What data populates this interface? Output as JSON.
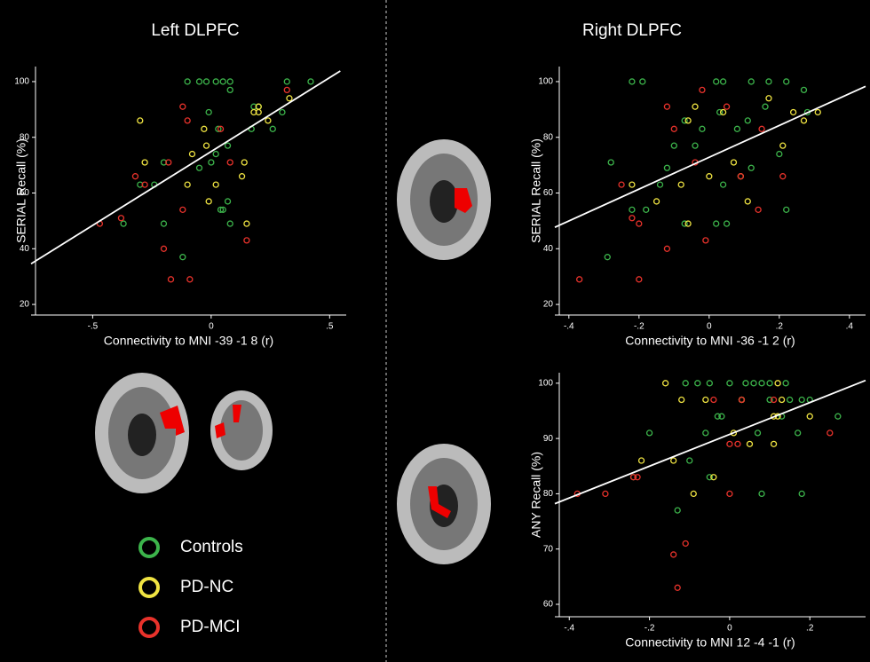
{
  "chart_data": [
    {
      "type": "scatter",
      "title": "Left DLPFC",
      "x_label": "Connectivity to MNI -39 -1 8 (r)",
      "y_label": "SERIAL Recall (%)",
      "xlim": [
        -0.76,
        0.57
      ],
      "ylim": [
        16.2,
        105.4
      ],
      "xticks": [
        {
          "value": -0.5,
          "label": "-.5"
        },
        0,
        {
          "value": 0.5,
          "label": ".5"
        }
      ],
      "yticks": [
        20,
        40,
        60,
        80,
        100
      ],
      "fit": {
        "color": "#ffffff",
        "x": [
          -0.76,
          0.545
        ],
        "values": [
          34.6,
          103.8
        ]
      },
      "series": [
        {
          "name": "Controls",
          "color": "#3cb44b",
          "x": [
            -0.1,
            -0.05,
            -0.02,
            0.02,
            0.05,
            0.08,
            0.08,
            0.32,
            0.42,
            -0.01,
            0.03,
            0.07,
            0.02,
            0.0,
            -0.05,
            -0.2,
            -0.24,
            -0.3,
            0.26,
            0.3,
            0.18,
            0.2,
            0.07,
            0.05,
            0.04,
            0.08,
            -0.2,
            -0.37,
            -0.12,
            0.17
          ],
          "values": [
            100,
            100,
            100,
            100,
            100,
            100,
            97,
            100,
            100,
            89,
            83,
            77,
            74,
            71,
            69,
            71,
            63,
            63,
            83,
            89,
            91,
            91,
            57,
            54,
            54,
            49,
            49,
            49,
            37,
            83
          ]
        },
        {
          "name": "PD-NC",
          "color": "#f0e442",
          "x": [
            -0.3,
            -0.28,
            -0.03,
            -0.02,
            0.02,
            0.2,
            0.18,
            0.2,
            0.24,
            0.33,
            0.14,
            0.13,
            -0.1,
            -0.08,
            -0.01,
            0.15
          ],
          "values": [
            86,
            71,
            83,
            77,
            63,
            91,
            89,
            89,
            86,
            94,
            71,
            66,
            63,
            74,
            57,
            49
          ]
        },
        {
          "name": "PD-MCI",
          "color": "#e8322b",
          "x": [
            -0.12,
            -0.47,
            -0.38,
            -0.32,
            -0.28,
            -0.18,
            -0.12,
            0.04,
            0.08,
            0.15,
            -0.2,
            -0.17,
            -0.09,
            0.32,
            -0.1
          ],
          "values": [
            91,
            49,
            51,
            66,
            63,
            71,
            54,
            83,
            71,
            43,
            40,
            29,
            29,
            97,
            86
          ]
        }
      ]
    },
    {
      "type": "scatter",
      "title": "Right DLPFC",
      "x_label": "Connectivity to MNI -36 -1 2 (r)",
      "y_label": "SERIAL Recall (%)",
      "xlim": [
        -0.44,
        0.446
      ],
      "ylim": [
        16.2,
        105.4
      ],
      "xticks": [
        {
          "value": -0.4,
          "label": "-.4"
        },
        {
          "value": -0.2,
          "label": "-.2"
        },
        0,
        {
          "value": 0.2,
          "label": ".2"
        },
        {
          "value": 0.4,
          "label": ".4"
        }
      ],
      "yticks": [
        20,
        40,
        60,
        80,
        100
      ],
      "fit": {
        "color": "#ffffff",
        "x": [
          -0.44,
          0.446
        ],
        "values": [
          47.7,
          98.3
        ]
      },
      "series": [
        {
          "color": "#3cb44b",
          "x": [
            -0.22,
            -0.19,
            0.02,
            0.04,
            0.12,
            0.17,
            0.22,
            0.27,
            -0.28,
            -0.22,
            -0.18,
            -0.14,
            -0.12,
            -0.1,
            -0.07,
            -0.04,
            -0.02,
            0.03,
            0.08,
            0.12,
            0.16,
            0.2,
            0.22,
            0.04,
            0.02,
            0.05,
            -0.07,
            -0.29,
            0.28,
            0.11
          ],
          "values": [
            100,
            100,
            100,
            100,
            100,
            100,
            100,
            97,
            71,
            54,
            54,
            63,
            69,
            77,
            86,
            77,
            83,
            89,
            83,
            69,
            91,
            74,
            54,
            63,
            49,
            49,
            49,
            37,
            89,
            86
          ]
        },
        {
          "color": "#f0e442",
          "x": [
            -0.22,
            -0.15,
            -0.08,
            -0.06,
            -0.04,
            0.0,
            0.04,
            0.07,
            0.09,
            0.17,
            0.21,
            0.24,
            0.27,
            0.31,
            -0.06,
            0.11
          ],
          "values": [
            63,
            57,
            63,
            86,
            91,
            66,
            89,
            71,
            66,
            94,
            77,
            89,
            86,
            89,
            49,
            57
          ]
        },
        {
          "color": "#e8322b",
          "x": [
            -0.22,
            -0.2,
            -0.25,
            -0.12,
            -0.1,
            -0.04,
            -0.02,
            0.05,
            0.09,
            0.15,
            0.14,
            0.21,
            -0.37,
            -0.2,
            -0.12,
            -0.01
          ],
          "values": [
            51,
            49,
            63,
            91,
            83,
            71,
            97,
            91,
            66,
            83,
            54,
            66,
            29,
            29,
            40,
            43
          ]
        }
      ]
    },
    {
      "type": "scatter",
      "x_label": "Connectivity to MNI 12 -4 -1 (r)",
      "y_label": "ANY Recall (%)",
      "xlim": [
        -0.436,
        0.339
      ],
      "ylim": [
        57.75,
        101.9
      ],
      "xticks": [
        {
          "value": -0.4,
          "label": "-.4"
        },
        {
          "value": -0.2,
          "label": "-.2"
        },
        0,
        {
          "value": 0.2,
          "label": ".2"
        }
      ],
      "yticks": [
        60,
        70,
        80,
        90,
        100
      ],
      "fit": {
        "color": "#ffffff",
        "x": [
          -0.436,
          0.339
        ],
        "values": [
          78.2,
          100.5
        ]
      },
      "series": [
        {
          "color": "#3cb44b",
          "x": [
            -0.11,
            -0.08,
            -0.05,
            0.0,
            0.04,
            0.06,
            0.08,
            0.1,
            0.14,
            0.18,
            0.2,
            0.27,
            -0.2,
            -0.03,
            -0.02,
            0.03,
            0.1,
            0.15,
            0.17,
            -0.06,
            0.07,
            -0.1,
            -0.13,
            -0.05,
            0.08,
            0.18,
            -0.24,
            0.13
          ],
          "values": [
            100,
            100,
            100,
            100,
            100,
            100,
            100,
            100,
            100,
            97,
            97,
            94,
            91,
            94,
            94,
            97,
            97,
            97,
            91,
            91,
            91,
            86,
            77,
            83,
            80,
            80,
            83,
            94
          ]
        },
        {
          "color": "#f0e442",
          "x": [
            -0.16,
            -0.12,
            -0.06,
            0.01,
            0.05,
            0.11,
            0.12,
            0.12,
            0.13,
            -0.22,
            -0.14,
            -0.04,
            -0.09,
            0.2,
            0.03,
            0.11
          ],
          "values": [
            100,
            97,
            97,
            91,
            89,
            94,
            94,
            100,
            97,
            86,
            86,
            83,
            80,
            94,
            97,
            89
          ]
        },
        {
          "color": "#e8322b",
          "x": [
            -0.38,
            -0.31,
            -0.24,
            -0.23,
            -0.04,
            0.0,
            0.02,
            0.03,
            0.11,
            0.0,
            0.25,
            -0.11,
            -0.14,
            -0.13
          ],
          "values": [
            80,
            80,
            83,
            83,
            97,
            89,
            89,
            97,
            97,
            80,
            91,
            71,
            69,
            63
          ]
        }
      ]
    }
  ]
}
